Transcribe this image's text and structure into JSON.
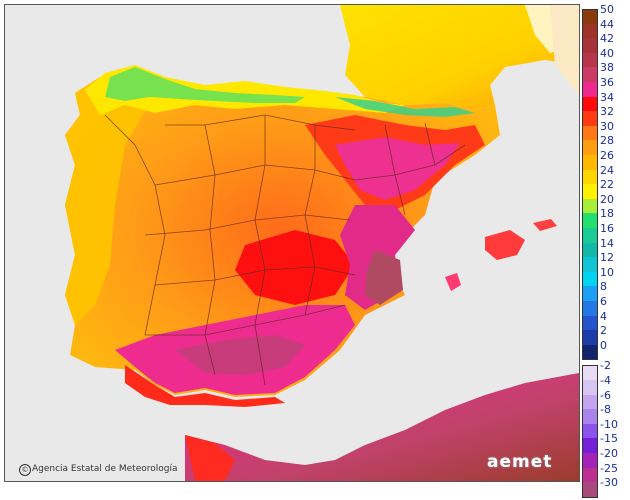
{
  "map": {
    "credit_text": "Agencia Estatal de Meteorología",
    "credit_symbol": "©",
    "logo_text": "aemet"
  },
  "legend": {
    "items": [
      {
        "label": "50",
        "color": "#8a3b0c"
      },
      {
        "label": "44",
        "color": "#9c3428"
      },
      {
        "label": "42",
        "color": "#a8323a"
      },
      {
        "label": "40",
        "color": "#b8364a"
      },
      {
        "label": "38",
        "color": "#cc3a66"
      },
      {
        "label": "36",
        "color": "#f0298f"
      },
      {
        "label": "34",
        "color": "#ff0a0a"
      },
      {
        "label": "32",
        "color": "#ff3b14"
      },
      {
        "label": "30",
        "color": "#ff7a14"
      },
      {
        "label": "28",
        "color": "#ff9d10"
      },
      {
        "label": "26",
        "color": "#ffb800"
      },
      {
        "label": "24",
        "color": "#ffd500"
      },
      {
        "label": "22",
        "color": "#fff200"
      },
      {
        "label": "20",
        "color": "#a8ee38"
      },
      {
        "label": "18",
        "color": "#22e070"
      },
      {
        "label": "16",
        "color": "#18cc94"
      },
      {
        "label": "14",
        "color": "#14b8a8"
      },
      {
        "label": "12",
        "color": "#10c4d4"
      },
      {
        "label": "10",
        "color": "#00d4f0"
      },
      {
        "label": "8",
        "color": "#1ca0f4"
      },
      {
        "label": "6",
        "color": "#2478e4"
      },
      {
        "label": "4",
        "color": "#2454cc"
      },
      {
        "label": "2",
        "color": "#1c3ca8"
      },
      {
        "label": "0",
        "color": "#14246c"
      },
      {
        "label": "-2",
        "color": "#e8dcf4"
      },
      {
        "label": "-4",
        "color": "#d8c4f0"
      },
      {
        "label": "-6",
        "color": "#c4a4ec"
      },
      {
        "label": "-8",
        "color": "#a884ec"
      },
      {
        "label": "-10",
        "color": "#8c54ec"
      },
      {
        "label": "-15",
        "color": "#7420d8"
      },
      {
        "label": "-20",
        "color": "#a424b8"
      },
      {
        "label": "-25",
        "color": "#bc3094"
      },
      {
        "label": "-30",
        "color": "#a8487c"
      }
    ]
  }
}
